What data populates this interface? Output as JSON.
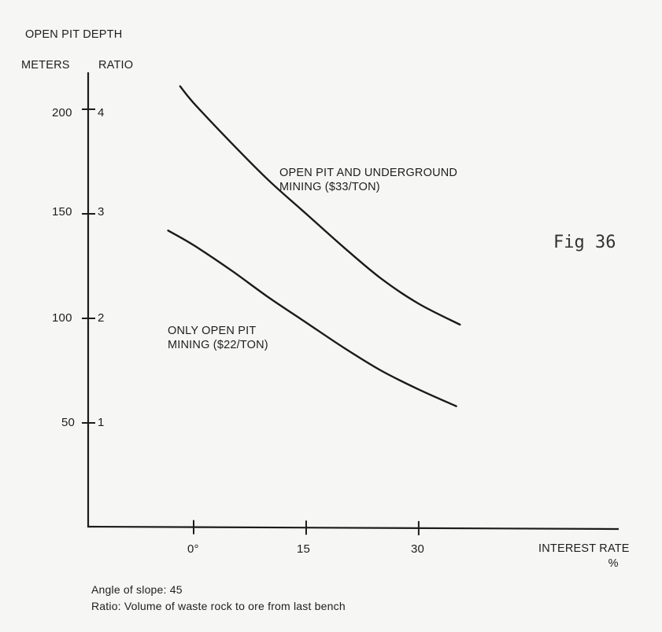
{
  "chart_data": {
    "type": "line",
    "title": "OPEN PIT DEPTH",
    "figure_label": "Fig 36",
    "xlabel": "INTEREST RATE",
    "xlabel_unit": "%",
    "ylabel_left": "METERS",
    "ylabel_right": "RATIO",
    "x_ticks": [
      {
        "value": 0,
        "label": "0°"
      },
      {
        "value": 15,
        "label": "15"
      },
      {
        "value": 30,
        "label": "30"
      }
    ],
    "y_ticks": [
      {
        "meters": 200,
        "ratio": 4,
        "label_left": "200",
        "label_right": "4"
      },
      {
        "meters": 150,
        "ratio": 3,
        "label_left": "150",
        "label_right": "3"
      },
      {
        "meters": 100,
        "ratio": 2,
        "label_left": "100",
        "label_right": "2"
      },
      {
        "meters": 50,
        "ratio": 1,
        "label_left": "50",
        "label_right": "1"
      }
    ],
    "xlim": [
      -14,
      56
    ],
    "ylim": [
      0,
      220
    ],
    "grid": false,
    "legend": "inline labels next to curves",
    "series": [
      {
        "name": "OPEN PIT AND UNDERGROUND MINING ($33/TON)",
        "label_lines": [
          "OPEN PIT AND UNDERGROUND",
          "MINING ($33/TON)"
        ],
        "x": [
          -1.8,
          0,
          5,
          10,
          15,
          20,
          25,
          30,
          35.5
        ],
        "y": [
          211,
          203,
          184,
          166,
          150,
          134,
          119,
          107,
          97
        ]
      },
      {
        "name": "ONLY OPEN PIT MINING ($22/TON)",
        "label_lines": [
          "ONLY OPEN PIT",
          "MINING ($22/TON)"
        ],
        "x": [
          -3.4,
          0,
          5,
          10,
          15,
          20,
          25,
          30,
          35
        ],
        "y": [
          142,
          135,
          123,
          110,
          98,
          86,
          75,
          66,
          58
        ]
      }
    ]
  },
  "notes": [
    "Angle of slope: 45",
    "Ratio: Volume of waste rock to ore from last bench"
  ]
}
